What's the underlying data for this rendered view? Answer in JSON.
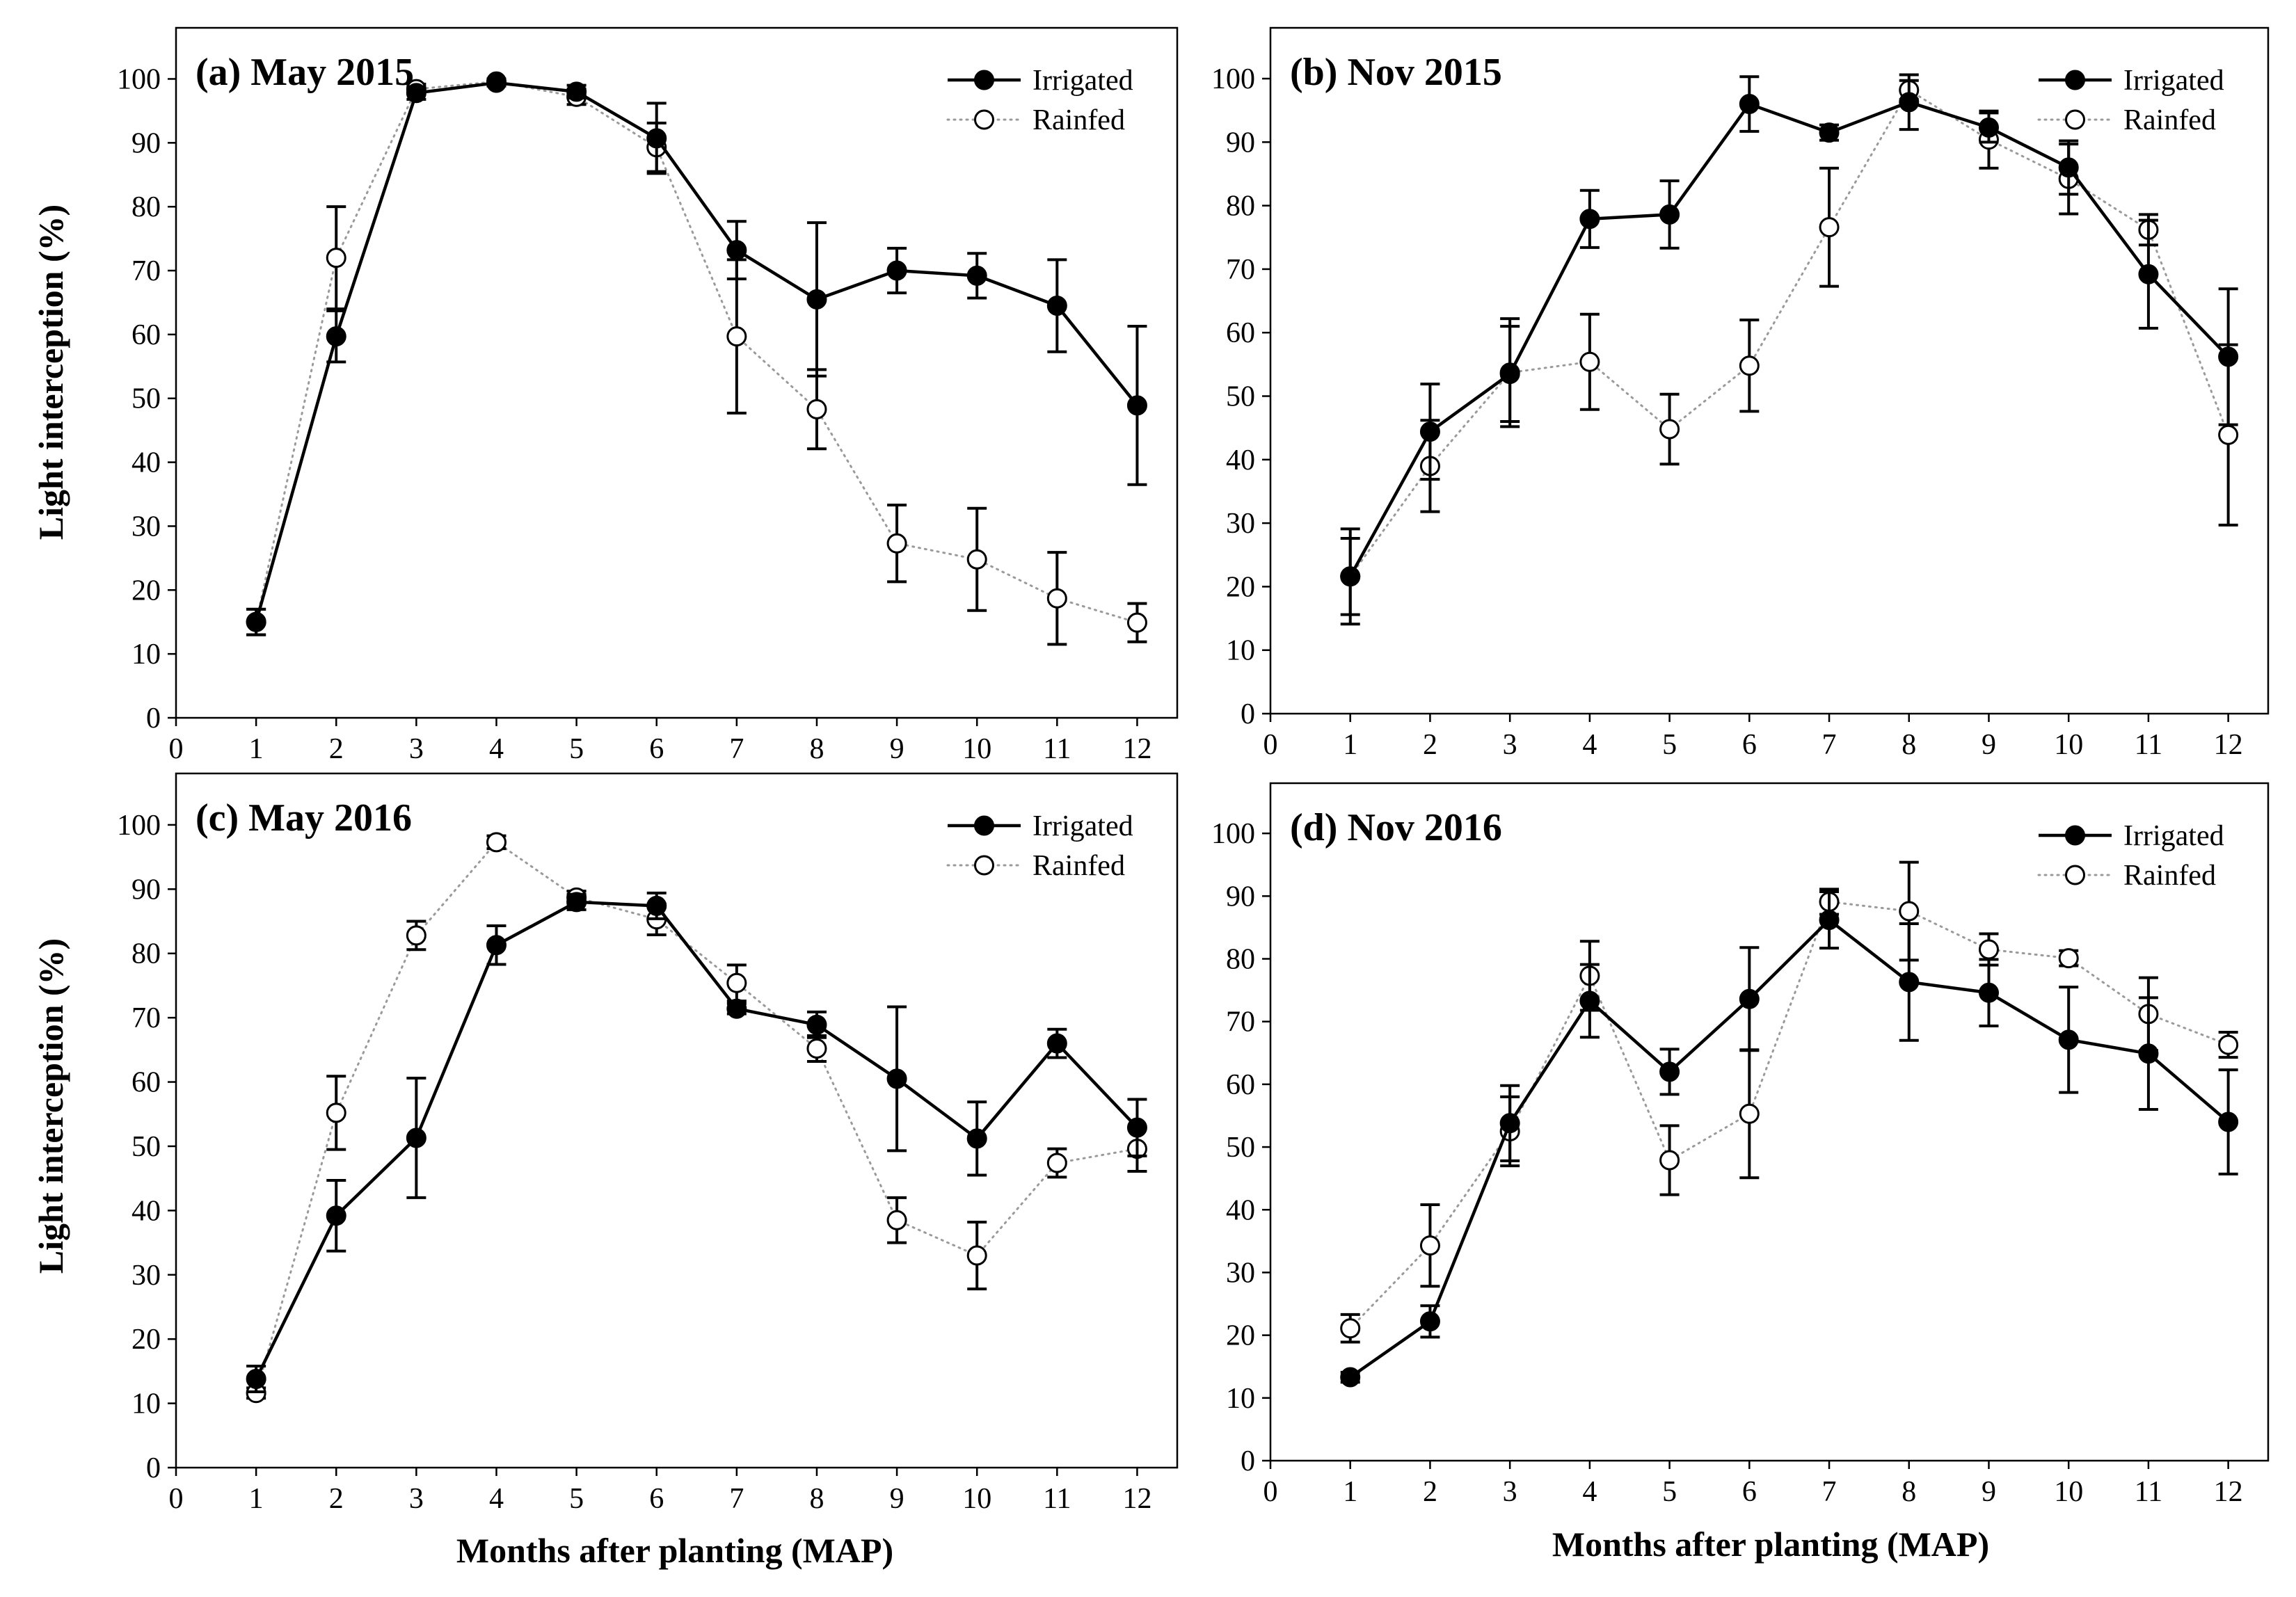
{
  "figure": {
    "ylabel": "Light interception (%)",
    "xlabel": "Months after planting (MAP)"
  },
  "chart_data": [
    {
      "type": "line",
      "title": "(a) May 2015",
      "xlabel": "Months after planting (MAP)",
      "ylabel": "Light interception (%)",
      "xlim": [
        0,
        12.5
      ],
      "ylim": [
        0,
        108
      ],
      "xticks": [
        0,
        1,
        2,
        3,
        4,
        5,
        6,
        7,
        8,
        9,
        10,
        11,
        12
      ],
      "yticks": [
        0,
        10,
        20,
        30,
        40,
        50,
        60,
        70,
        80,
        90,
        100
      ],
      "legend_position": "top-right",
      "x": [
        1,
        2,
        3,
        4,
        5,
        6,
        7,
        8,
        9,
        10,
        11,
        12
      ],
      "series": [
        {
          "name": "Irrigated",
          "marker": "filled-circle",
          "line": "solid",
          "color": "#000000",
          "values": [
            15,
            59.7,
            97.8,
            99.4,
            98,
            90.7,
            73.2,
            65.5,
            70,
            69.2,
            64.5,
            48.9
          ],
          "errors": [
            2,
            4,
            1,
            0.5,
            1,
            5.5,
            4.5,
            12,
            3.5,
            3.5,
            7.2,
            12.4
          ]
        },
        {
          "name": "Rainfed",
          "marker": "open-circle",
          "line": "dotted",
          "color": "#000000",
          "values": [
            15,
            72,
            98.4,
            99.6,
            97.2,
            89.3,
            59.7,
            48.3,
            27.3,
            24.8,
            18.7,
            14.9
          ],
          "errors": [
            2,
            8,
            0.8,
            0.4,
            1.2,
            3.8,
            12,
            6.2,
            6,
            8,
            7.2,
            3
          ]
        }
      ]
    },
    {
      "type": "line",
      "title": "(b) Nov 2015",
      "xlabel": "Months after planting (MAP)",
      "ylabel": "Light interception (%)",
      "xlim": [
        0,
        12.5
      ],
      "ylim": [
        0,
        108
      ],
      "xticks": [
        0,
        1,
        2,
        3,
        4,
        5,
        6,
        7,
        8,
        9,
        10,
        11,
        12
      ],
      "yticks": [
        0,
        10,
        20,
        30,
        40,
        50,
        60,
        70,
        80,
        90,
        100
      ],
      "legend_position": "top-right",
      "x": [
        1,
        2,
        3,
        4,
        5,
        6,
        7,
        8,
        9,
        10,
        11,
        12
      ],
      "series": [
        {
          "name": "Irrigated",
          "marker": "filled-circle",
          "line": "solid",
          "color": "#000000",
          "values": [
            21.6,
            44.4,
            53.5,
            77.9,
            78.6,
            96,
            91.5,
            96.3,
            92.3,
            86,
            69.2,
            56.2
          ],
          "errors": [
            7.5,
            7.5,
            7.5,
            4.5,
            5.3,
            4.3,
            1.2,
            4.3,
            2.3,
            4.2,
            8.5,
            10.7
          ]
        },
        {
          "name": "Rainfed",
          "marker": "open-circle",
          "line": "dotted",
          "color": "#000000",
          "values": [
            21.6,
            39,
            53.7,
            55.4,
            44.8,
            54.8,
            76.6,
            98.2,
            90.4,
            84.2,
            76.2,
            43.9
          ],
          "errors": [
            6,
            7.2,
            8.5,
            7.5,
            5.5,
            7.2,
            9.3,
            1.5,
            4.5,
            5.5,
            2.4,
            14.2
          ]
        }
      ]
    },
    {
      "type": "line",
      "title": "(c) May 2016",
      "xlabel": "Months after planting (MAP)",
      "ylabel": "Light interception (%)",
      "xlim": [
        0,
        12.5
      ],
      "ylim": [
        0,
        108
      ],
      "xticks": [
        0,
        1,
        2,
        3,
        4,
        5,
        6,
        7,
        8,
        9,
        10,
        11,
        12
      ],
      "yticks": [
        0,
        10,
        20,
        30,
        40,
        50,
        60,
        70,
        80,
        90,
        100
      ],
      "legend_position": "top-right",
      "x": [
        1,
        2,
        3,
        4,
        5,
        6,
        7,
        8,
        9,
        10,
        11,
        12
      ],
      "series": [
        {
          "name": "Irrigated",
          "marker": "filled-circle",
          "line": "solid",
          "color": "#000000",
          "values": [
            13.8,
            39.2,
            51.3,
            81.3,
            88,
            87.4,
            71.4,
            68.9,
            60.5,
            51.2,
            66,
            52.9
          ],
          "errors": [
            2,
            5.5,
            9.3,
            3,
            1.2,
            2,
            0.8,
            2,
            11.2,
            5.7,
            2.2,
            4.4
          ]
        },
        {
          "name": "Rainfed",
          "marker": "open-circle",
          "line": "dotted",
          "color": "#000000",
          "values": [
            11.6,
            55.2,
            82.8,
            97.3,
            88.7,
            85.3,
            75.4,
            65.2,
            38.5,
            33,
            47.4,
            49.6
          ],
          "errors": [
            0.8,
            5.7,
            2.2,
            1,
            1,
            2.4,
            2.8,
            2,
            3.5,
            5.2,
            2.2,
            3.5
          ]
        }
      ]
    },
    {
      "type": "line",
      "title": "(d) Nov 2016",
      "xlabel": "Months after planting (MAP)",
      "ylabel": "Light interception (%)",
      "xlim": [
        0,
        12.5
      ],
      "ylim": [
        0,
        108
      ],
      "xticks": [
        0,
        1,
        2,
        3,
        4,
        5,
        6,
        7,
        8,
        9,
        10,
        11,
        12
      ],
      "yticks": [
        0,
        10,
        20,
        30,
        40,
        50,
        60,
        70,
        80,
        90,
        100
      ],
      "legend_position": "top-right",
      "x": [
        1,
        2,
        3,
        4,
        5,
        6,
        7,
        8,
        9,
        10,
        11,
        12
      ],
      "series": [
        {
          "name": "Irrigated",
          "marker": "filled-circle",
          "line": "solid",
          "color": "#000000",
          "values": [
            13.3,
            22.2,
            53.8,
            73.3,
            62,
            73.6,
            86.2,
            76.3,
            74.6,
            67.1,
            64.9,
            54
          ],
          "errors": [
            0.8,
            2.5,
            6,
            5.8,
            3.6,
            8.2,
            4.5,
            9.3,
            5.3,
            8.4,
            8.9,
            8.3
          ]
        },
        {
          "name": "Rainfed",
          "marker": "open-circle",
          "line": "dotted",
          "color": "#000000",
          "values": [
            21.1,
            34.3,
            52.5,
            77.3,
            47.9,
            55.3,
            89.1,
            87.6,
            81.5,
            80.1,
            71.2,
            66.3
          ],
          "errors": [
            2.2,
            6.5,
            5.5,
            5.5,
            5.5,
            10.2,
            2,
            7.8,
            2.5,
            1.2,
            5.8,
            2
          ]
        }
      ]
    }
  ]
}
